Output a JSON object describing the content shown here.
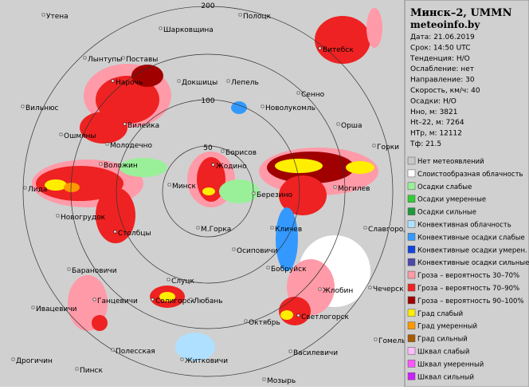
{
  "map": {
    "ring_labels": [
      "50",
      "100",
      "200"
    ],
    "cities": [
      "Утена",
      "Полоцк",
      "Шарковщина",
      "Витебск",
      "Поставы",
      "Лынтупы",
      "Нарочь",
      "Докшицы",
      "Лепель",
      "Сенно",
      "Вильнюс",
      "Новолукомль",
      "Вилейка",
      "Ошмяны",
      "Орша",
      "Молодечно",
      "Борисов",
      "Горки",
      "Воложин",
      "Жодино",
      "Лида",
      "Минск",
      "Березино",
      "Могилев",
      "Новогрудок",
      "Столбцы",
      "М.Горка",
      "Кличев",
      "Славгород",
      "Осиповичи",
      "Барановичи",
      "Бобруйск",
      "Слуцк",
      "Ганцевичи",
      "Солигорск",
      "Любань",
      "Жлобин",
      "Чечерск",
      "Ивацевичи",
      "Светлогорск",
      "Октябрь",
      "Гомель",
      "Полесская",
      "Василевичи",
      "Дрогичин",
      "Житковичи",
      "Пинск",
      "Мозырь"
    ]
  },
  "panel": {
    "title": "Минск–2, UMMN",
    "site": "meteoinfo.by",
    "info": [
      "Дата: 21.06.2019",
      "Срок: 14:50 UTC",
      "Тенденция: Н/О",
      "Ослабление: нет",
      "Направление: 30",
      "Скорость, км/ч: 40",
      "Осадки: Н/О",
      "Hно, м: 3821",
      "Ht–22, м: 7264",
      "HTр, м: 12112",
      "Тф: 21.5"
    ]
  },
  "legend": [
    {
      "label": "Нет метеоявлений",
      "color": "#c8c8c8"
    },
    {
      "label": "Слоистообразная облачность",
      "color": "#ffffff"
    },
    {
      "label": "Осадки слабые",
      "color": "#99f099"
    },
    {
      "label": "Осадки умеренные",
      "color": "#33cc33"
    },
    {
      "label": "Осадки сильные",
      "color": "#1f9a3a"
    },
    {
      "label": "Конвективная облачность",
      "color": "#b0e0ff"
    },
    {
      "label": "Конвективные осадки слабые",
      "color": "#3399ff"
    },
    {
      "label": "Конвективные осадки умерен.",
      "color": "#1144dd"
    },
    {
      "label": "Конвективные осадки сильные",
      "color": "#4a4aaa"
    },
    {
      "label": "Гроза – вероятность 30–70%",
      "color": "#ff9aa8"
    },
    {
      "label": "Гроза – вероятность 70–90%",
      "color": "#ee2222"
    },
    {
      "label": "Гроза – вероятность 90–100%",
      "color": "#a00000"
    },
    {
      "label": "Град слабый",
      "color": "#ffee00"
    },
    {
      "label": "Град умеренный",
      "color": "#ff9900"
    },
    {
      "label": "Град сильный",
      "color": "#a85a00"
    },
    {
      "label": "Шквал слабый",
      "color": "#ffbbff"
    },
    {
      "label": "Шквал умеренный",
      "color": "#ff55ff"
    },
    {
      "label": "Шквал сильный",
      "color": "#cc22ff"
    }
  ]
}
